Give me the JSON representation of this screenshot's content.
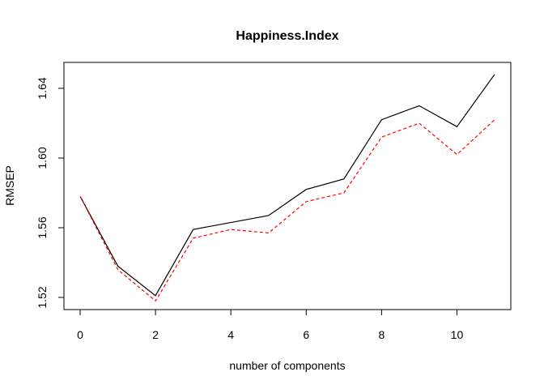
{
  "chart_data": {
    "type": "line",
    "title": "Happiness.Index",
    "xlabel": "number of components",
    "ylabel": "RMSEP",
    "xlim": [
      0,
      11
    ],
    "ylim": [
      1.52,
      1.64
    ],
    "x_ticks": [
      0,
      2,
      4,
      6,
      8,
      10
    ],
    "x_tick_labels": [
      "0",
      "2",
      "4",
      "6",
      "8",
      "10"
    ],
    "y_ticks": [
      1.52,
      1.56,
      1.6,
      1.64
    ],
    "y_tick_labels": [
      "1.52",
      "1.56",
      "1.60",
      "1.64"
    ],
    "x": [
      0,
      1,
      2,
      3,
      4,
      5,
      6,
      7,
      8,
      9,
      10,
      11
    ],
    "grid": false,
    "legend": "none",
    "series": [
      {
        "values": [
          1.578,
          1.538,
          1.521,
          1.559,
          1.563,
          1.567,
          1.582,
          1.588,
          1.622,
          1.63,
          1.618,
          1.648
        ],
        "color": "#000000",
        "style": "solid"
      },
      {
        "values": [
          1.578,
          1.536,
          1.518,
          1.554,
          1.559,
          1.557,
          1.575,
          1.58,
          1.612,
          1.62,
          1.602,
          1.622
        ],
        "color": "#ff0000",
        "style": "dashed"
      }
    ]
  }
}
